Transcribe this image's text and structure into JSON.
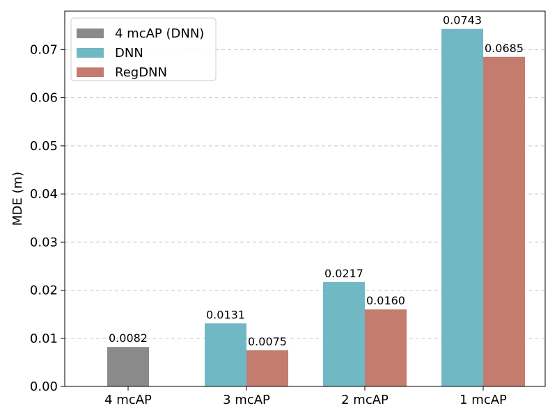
{
  "chart_data": {
    "type": "bar",
    "categories": [
      "4 mcAP",
      "3 mcAP",
      "2 mcAP",
      "1 mcAP"
    ],
    "series": [
      {
        "name": "4 mcAP (DNN)",
        "color": "#8a8a8a",
        "values": [
          0.0082,
          null,
          null,
          null
        ],
        "labels": [
          "0.0082",
          null,
          null,
          null
        ]
      },
      {
        "name": "DNN",
        "color": "#70b8c4",
        "values": [
          null,
          0.0131,
          0.0217,
          0.0743
        ],
        "labels": [
          null,
          "0.0131",
          "0.0217",
          "0.0743"
        ]
      },
      {
        "name": "RegDNN",
        "color": "#c47c6e",
        "values": [
          null,
          0.0075,
          0.016,
          0.0685
        ],
        "labels": [
          null,
          "0.0075",
          "0.0160",
          "0.0685"
        ]
      }
    ],
    "xlabel": "",
    "ylabel": "MDE (m)",
    "ylim": [
      0,
      0.078
    ],
    "yticks": [
      "0.00",
      "0.01",
      "0.02",
      "0.03",
      "0.04",
      "0.05",
      "0.06",
      "0.07"
    ],
    "ytick_values": [
      0,
      0.01,
      0.02,
      0.03,
      0.04,
      0.05,
      0.06,
      0.07
    ],
    "grid": "y-dashed",
    "legend_position": "top-left"
  }
}
